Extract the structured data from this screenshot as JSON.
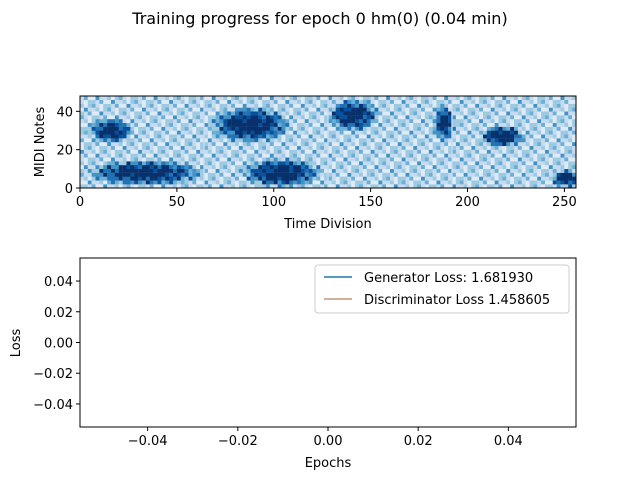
{
  "figure": {
    "title": "Training progress for epoch 0 hm(0) (0.04 min)"
  },
  "chart_data": [
    {
      "type": "heatmap",
      "xlabel": "Time Division",
      "ylabel": "MIDI Notes",
      "xlim": [
        0,
        256
      ],
      "ylim": [
        0,
        48
      ],
      "xticks": [
        0,
        50,
        100,
        150,
        200,
        250
      ],
      "yticks": [
        0,
        20,
        40
      ],
      "colormap": "Blues",
      "segment_boundaries": [
        64,
        128,
        192
      ],
      "blobs": [
        {
          "x": 15,
          "y": 29,
          "rx": 12,
          "ry": 7
        },
        {
          "x": 33,
          "y": 7,
          "rx": 32,
          "ry": 7
        },
        {
          "x": 87,
          "y": 32,
          "rx": 22,
          "ry": 10
        },
        {
          "x": 103,
          "y": 7,
          "rx": 22,
          "ry": 8
        },
        {
          "x": 140,
          "y": 37,
          "rx": 14,
          "ry": 9
        },
        {
          "x": 187,
          "y": 33,
          "rx": 6,
          "ry": 10
        },
        {
          "x": 217,
          "y": 26,
          "rx": 12,
          "ry": 6
        },
        {
          "x": 250,
          "y": 4,
          "rx": 8,
          "ry": 5
        }
      ]
    },
    {
      "type": "line",
      "xlabel": "Epochs",
      "ylabel": "Loss",
      "xlim": [
        -0.055,
        0.055
      ],
      "ylim": [
        -0.055,
        0.055
      ],
      "xticks": [
        -0.04,
        -0.02,
        0.0,
        0.02,
        0.04
      ],
      "yticks": [
        -0.04,
        -0.02,
        0.0,
        0.02,
        0.04
      ],
      "xtick_labels": [
        "−0.04",
        "−0.02",
        "0.00",
        "0.02",
        "0.04"
      ],
      "ytick_labels": [
        "−0.04",
        "−0.02",
        "0.00",
        "0.02",
        "0.04"
      ],
      "legend_position": "top-right",
      "series": [
        {
          "name": "Generator Loss: 1.681930",
          "color": "#1f77b4",
          "x": [],
          "y": []
        },
        {
          "name": "Discriminator Loss 1.458605",
          "color": "#c0957a",
          "x": [],
          "y": []
        }
      ]
    }
  ]
}
